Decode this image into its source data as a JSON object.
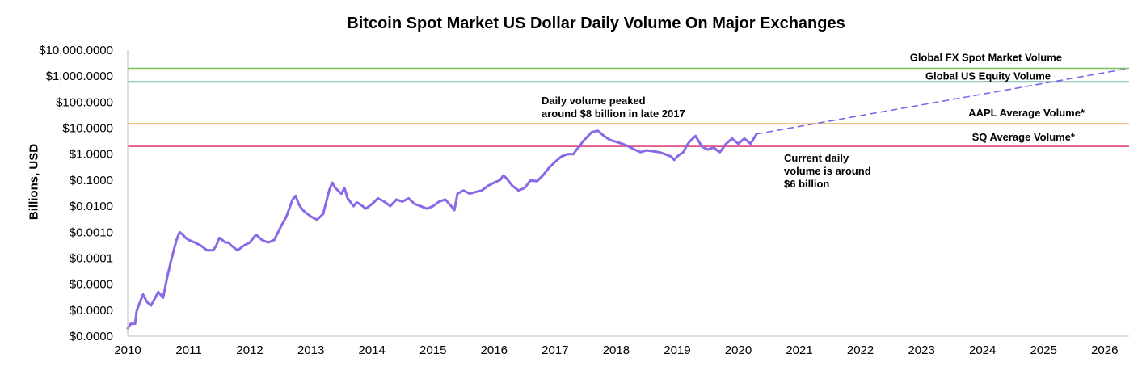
{
  "chart_data": {
    "type": "line",
    "title": "Bitcoin Spot Market US Dollar Daily Volume On Major Exchanges",
    "xlabel": "",
    "ylabel": "Billions, USD",
    "y_scale": "log",
    "ylim": [
      1e-07,
      10000
    ],
    "xlim": [
      2010,
      2026.4
    ],
    "y_tick_values": [
      1e-07,
      1e-06,
      1e-05,
      0.0001,
      0.001,
      0.01,
      0.1,
      1,
      10,
      100,
      1000,
      10000
    ],
    "y_tick_labels": [
      "$0.0000",
      "$0.0000",
      "$0.0000",
      "$0.0001",
      "$0.0010",
      "$0.0100",
      "$0.1000",
      "$1.0000",
      "$10.0000",
      "$100.0000",
      "$1,000.0000",
      "$10,000.0000"
    ],
    "x_tick_labels": [
      "2010",
      "2011",
      "2012",
      "2013",
      "2014",
      "2015",
      "2016",
      "2017",
      "2018",
      "2019",
      "2020",
      "2021",
      "2022",
      "2023",
      "2024",
      "2025",
      "2026"
    ],
    "grid": false,
    "series": [
      {
        "color": "#8B68E5",
        "x": [
          2010.0,
          2010.05,
          2010.12,
          2010.15,
          2010.2,
          2010.25,
          2010.32,
          2010.38,
          2010.45,
          2010.5,
          2010.58,
          2010.65,
          2010.72,
          2010.8,
          2010.85,
          2010.9,
          2010.95,
          2011.0,
          2011.1,
          2011.2,
          2011.3,
          2011.4,
          2011.45,
          2011.5,
          2011.55,
          2011.6,
          2011.65,
          2011.7,
          2011.8,
          2011.9,
          2012.0,
          2012.1,
          2012.2,
          2012.3,
          2012.4,
          2012.5,
          2012.6,
          2012.7,
          2012.75,
          2012.8,
          2012.85,
          2012.9,
          2013.0,
          2013.1,
          2013.2,
          2013.3,
          2013.35,
          2013.4,
          2013.5,
          2013.55,
          2013.6,
          2013.7,
          2013.75,
          2013.8,
          2013.9,
          2014.0,
          2014.1,
          2014.2,
          2014.3,
          2014.4,
          2014.5,
          2014.6,
          2014.7,
          2014.8,
          2014.9,
          2015.0,
          2015.1,
          2015.2,
          2015.3,
          2015.35,
          2015.4,
          2015.5,
          2015.6,
          2015.7,
          2015.8,
          2015.9,
          2016.0,
          2016.1,
          2016.15,
          2016.2,
          2016.3,
          2016.4,
          2016.5,
          2016.6,
          2016.7,
          2016.8,
          2016.9,
          2017.0,
          2017.1,
          2017.2,
          2017.3,
          2017.35,
          2017.4,
          2017.45,
          2017.5,
          2017.6,
          2017.7,
          2017.8,
          2017.9,
          2018.0,
          2018.1,
          2018.2,
          2018.3,
          2018.4,
          2018.5,
          2018.6,
          2018.7,
          2018.8,
          2018.9,
          2018.95,
          2019.0,
          2019.05,
          2019.1,
          2019.15,
          2019.2,
          2019.3,
          2019.4,
          2019.5,
          2019.6,
          2019.65,
          2019.7,
          2019.8,
          2019.9,
          2020.0,
          2020.1,
          2020.2,
          2020.3
        ],
        "values": [
          2e-07,
          3e-07,
          3e-07,
          1e-06,
          2e-06,
          4e-06,
          2e-06,
          1.5e-06,
          3e-06,
          5e-06,
          3e-06,
          2e-05,
          0.0001,
          0.0005,
          0.001,
          0.0008,
          0.0006,
          0.0005,
          0.0004,
          0.0003,
          0.0002,
          0.0002,
          0.0003,
          0.0006,
          0.0005,
          0.0004,
          0.0004,
          0.0003,
          0.0002,
          0.0003,
          0.0004,
          0.0008,
          0.0005,
          0.0004,
          0.0005,
          0.0015,
          0.004,
          0.018,
          0.025,
          0.012,
          0.008,
          0.006,
          0.004,
          0.003,
          0.005,
          0.04,
          0.08,
          0.05,
          0.03,
          0.05,
          0.02,
          0.01,
          0.014,
          0.012,
          0.008,
          0.012,
          0.02,
          0.015,
          0.01,
          0.018,
          0.015,
          0.02,
          0.012,
          0.01,
          0.008,
          0.01,
          0.015,
          0.018,
          0.01,
          0.007,
          0.03,
          0.04,
          0.03,
          0.035,
          0.04,
          0.06,
          0.08,
          0.1,
          0.15,
          0.12,
          0.06,
          0.04,
          0.05,
          0.1,
          0.09,
          0.15,
          0.3,
          0.5,
          0.8,
          1.0,
          1.0,
          1.5,
          2.0,
          3.0,
          4.0,
          7.0,
          8.0,
          5.0,
          3.5,
          3.0,
          2.5,
          2.0,
          1.5,
          1.2,
          1.4,
          1.3,
          1.2,
          1.0,
          0.8,
          0.6,
          0.8,
          1.0,
          1.2,
          2.0,
          3.0,
          5.0,
          2.0,
          1.5,
          1.8,
          1.4,
          1.2,
          2.5,
          4.0,
          2.5,
          4.0,
          2.5,
          6.0
        ]
      },
      {
        "name": "projection",
        "color": "#7B68EE",
        "style": "dashed",
        "x": [
          2020.3,
          2026.4
        ],
        "values": [
          6.0,
          2000
        ]
      }
    ],
    "reference_lines": [
      {
        "label": "Global FX Spot Market Volume",
        "value": 2000,
        "color": "#7FBF5A"
      },
      {
        "label": "Global US Equity Volume",
        "value": 600,
        "color": "#2F8F86"
      },
      {
        "label": "AAPL Average Volume*",
        "value": 15,
        "color": "#F4B56A"
      },
      {
        "label": "SQ Average Volume*",
        "value": 2,
        "color": "#E0457B"
      }
    ],
    "annotations": [
      {
        "lines": [
          "Daily volume peaked",
          "around $8 billion in late 2017"
        ]
      },
      {
        "lines": [
          "Current daily",
          "volume is around",
          "$6 billion"
        ]
      }
    ]
  }
}
